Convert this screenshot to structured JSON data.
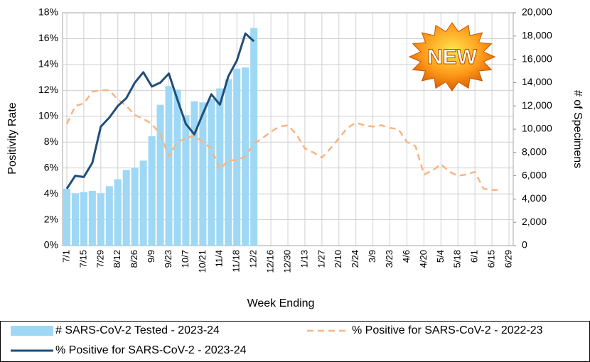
{
  "chart_data": {
    "type": "combo",
    "badge": "NEW",
    "xlabel": "Week Ending",
    "ylabel": "Positivity Rate",
    "y2label": "# of Specimens",
    "categories": [
      "7/1",
      null,
      "7/15",
      null,
      "7/29",
      null,
      "8/12",
      null,
      "8/26",
      null,
      "9/9",
      null,
      "9/23",
      null,
      "10/7",
      null,
      "10/21",
      null,
      "11/4",
      null,
      "11/18",
      null,
      "12/2",
      null,
      "12/16",
      null,
      "12/30",
      null,
      "1/13",
      null,
      "1/27",
      null,
      "2/10",
      null,
      "2/24",
      null,
      "3/9",
      null,
      "3/23",
      null,
      "4/6",
      null,
      "4/20",
      null,
      "5/4",
      null,
      "5/18",
      null,
      "6/1",
      null,
      "6/15",
      null,
      "6/29"
    ],
    "series": [
      {
        "name": "# SARS-CoV-2 Tested - 2023-24",
        "type": "bar",
        "axis": "y2",
        "color": "#9fd8f4",
        "values": [
          4900,
          4500,
          4600,
          4700,
          4500,
          5100,
          5700,
          6500,
          6700,
          7300,
          9400,
          12100,
          13700,
          13400,
          11200,
          12400,
          12300,
          12600,
          13500,
          14300,
          15200,
          15300,
          18700,
          null,
          null,
          null,
          null,
          null,
          null,
          null,
          null,
          null,
          null,
          null,
          null,
          null,
          null,
          null,
          null,
          null,
          null,
          null,
          null,
          null,
          null,
          null,
          null,
          null,
          null,
          null,
          null,
          null,
          null
        ]
      },
      {
        "name": "% Positive for SARS-CoV-2 - 2022-23",
        "type": "line",
        "dash": true,
        "color": "#f9b483",
        "values": [
          9.4,
          10.8,
          11.0,
          11.9,
          12.0,
          12.0,
          11.3,
          10.8,
          10.1,
          9.8,
          9.4,
          8.6,
          6.9,
          8.0,
          8.3,
          8.5,
          8.0,
          7.5,
          5.9,
          6.6,
          6.6,
          6.9,
          7.9,
          8.3,
          8.8,
          9.2,
          9.3,
          8.6,
          7.5,
          7.2,
          6.8,
          7.5,
          8.3,
          9.1,
          9.5,
          9.3,
          9.2,
          9.3,
          9.1,
          9.0,
          8.0,
          7.7,
          5.5,
          5.8,
          6.3,
          5.7,
          5.4,
          5.5,
          5.7,
          4.4,
          4.3,
          4.3,
          null
        ]
      },
      {
        "name": "% Positive for SARS-CoV-2 - 2023-24",
        "type": "line",
        "dash": false,
        "color": "#1f4e79",
        "values": [
          4.4,
          5.4,
          5.3,
          6.4,
          9.2,
          9.9,
          10.8,
          11.4,
          12.6,
          13.4,
          12.3,
          12.6,
          13.3,
          11.3,
          9.4,
          8.6,
          10.2,
          11.7,
          10.9,
          13.1,
          14.3,
          16.4,
          15.8,
          null,
          null,
          null,
          null,
          null,
          null,
          null,
          null,
          null,
          null,
          null,
          null,
          null,
          null,
          null,
          null,
          null,
          null,
          null,
          null,
          null,
          null,
          null,
          null,
          null,
          null,
          null,
          null,
          null,
          null
        ]
      }
    ],
    "ylim": [
      0,
      18
    ],
    "yticks": [
      {
        "value": 0,
        "label": "0%"
      },
      {
        "value": 2,
        "label": "2%"
      },
      {
        "value": 4,
        "label": "4%"
      },
      {
        "value": 6,
        "label": "6%"
      },
      {
        "value": 8,
        "label": "8%"
      },
      {
        "value": 10,
        "label": "10%"
      },
      {
        "value": 12,
        "label": "12%"
      },
      {
        "value": 14,
        "label": "14%"
      },
      {
        "value": 16,
        "label": "16%"
      },
      {
        "value": 18,
        "label": "18%"
      }
    ],
    "y2lim": [
      0,
      20000
    ],
    "y2ticks": [
      0,
      {
        "value": 2000,
        "label": "2,000"
      },
      {
        "value": 4000,
        "label": "4,000"
      },
      {
        "value": 6000,
        "label": "6,000"
      },
      {
        "value": 8000,
        "label": "8,000"
      },
      {
        "value": 10000,
        "label": "10,000"
      },
      {
        "value": 12000,
        "label": "12,000"
      },
      {
        "value": 14000,
        "label": "14,000"
      },
      {
        "value": 16000,
        "label": "16,000"
      },
      {
        "value": 18000,
        "label": "18,000"
      },
      {
        "value": 20000,
        "label": "20,000"
      }
    ],
    "grid": true
  }
}
